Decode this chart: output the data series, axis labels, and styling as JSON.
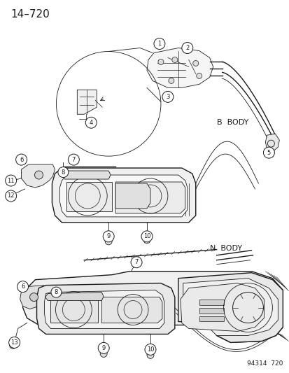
{
  "title": "14–720",
  "bg_color": "#ffffff",
  "line_color": "#1a1a1a",
  "label_color": "#1a1a1a",
  "part_number_bottom": "94314  720",
  "b_body_label": "B  BODY",
  "n_body_label": "N  BODY",
  "title_fontsize": 11,
  "label_fontsize": 8,
  "small_fontsize": 6.5,
  "fig_width": 4.14,
  "fig_height": 5.33,
  "dpi": 100
}
